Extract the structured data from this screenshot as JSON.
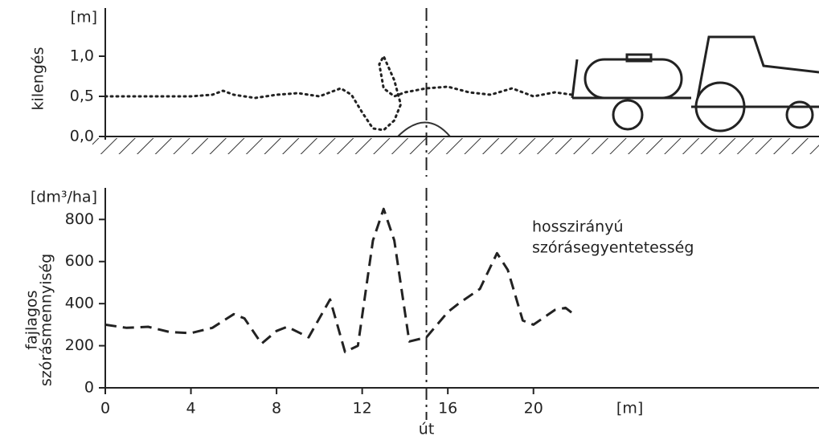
{
  "chart_data": [
    {
      "type": "line",
      "unit_label": "[m]",
      "ylabel": "kilengés",
      "xlim": [
        0,
        33
      ],
      "ylim": [
        0,
        1.6
      ],
      "yticks": [
        {
          "value": 0,
          "label": "0,0"
        },
        {
          "value": 0.5,
          "label": "0,5"
        },
        {
          "value": 1.0,
          "label": "1,0"
        }
      ],
      "reference_line_x": 15,
      "x": [
        0,
        1,
        2,
        3,
        4,
        5,
        5.5,
        6,
        7,
        8,
        9,
        10,
        11,
        11.5,
        12,
        12.5,
        13,
        13.5,
        13.8,
        13.5,
        13,
        12.8,
        13,
        13.5,
        14,
        15,
        16,
        17,
        18,
        19,
        20,
        21,
        21.8
      ],
      "values": [
        0.5,
        0.5,
        0.5,
        0.5,
        0.5,
        0.52,
        0.57,
        0.52,
        0.48,
        0.52,
        0.54,
        0.5,
        0.6,
        0.52,
        0.3,
        0.1,
        0.08,
        0.2,
        0.4,
        0.7,
        1.0,
        0.9,
        0.6,
        0.5,
        0.55,
        0.6,
        0.62,
        0.55,
        0.52,
        0.6,
        0.5,
        0.55,
        0.52
      ]
    },
    {
      "type": "line",
      "unit_label": "[dm³/ha]",
      "ylabel": [
        "fajlagos",
        "szórásmennyiség"
      ],
      "xlabel": "út",
      "x_unit_label": "[m]",
      "annotation": [
        "hosszirányú",
        "szórásegyentetesség"
      ],
      "xlim": [
        0,
        33
      ],
      "ylim": [
        0,
        950
      ],
      "xticks": [
        0,
        4,
        8,
        12,
        16,
        20
      ],
      "yticks": [
        0,
        200,
        400,
        600,
        800
      ],
      "reference_line_x": 15,
      "x": [
        0,
        1,
        2,
        3,
        4,
        5,
        6,
        6.5,
        7.3,
        8,
        8.5,
        9.5,
        10.5,
        11.2,
        11.8,
        12.5,
        13,
        13.5,
        14.2,
        15,
        16,
        16.5,
        17.5,
        18.3,
        18.8,
        19.5,
        20,
        21,
        21.5,
        22
      ],
      "values": [
        300,
        285,
        290,
        265,
        260,
        285,
        350,
        330,
        210,
        270,
        290,
        240,
        420,
        170,
        200,
        700,
        850,
        700,
        220,
        240,
        360,
        400,
        470,
        640,
        560,
        320,
        300,
        370,
        380,
        340
      ]
    }
  ]
}
